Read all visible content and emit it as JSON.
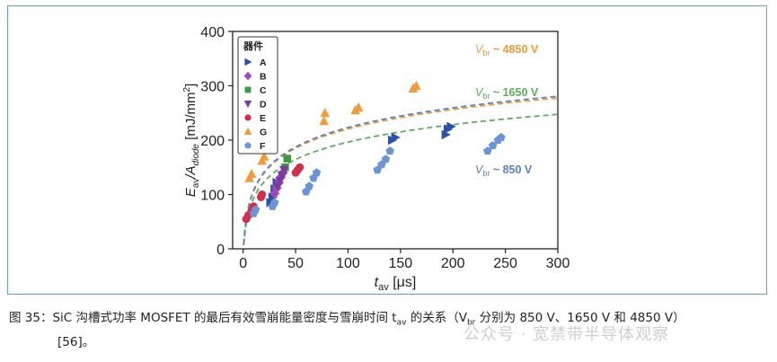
{
  "figure": {
    "caption": "图 35：SiC 沟槽式功率 MOSFET 的最后有效雪崩能量密度与雪崩时间 t",
    "caption_sub": "av",
    "caption_tail": " 的关系（V",
    "caption_sub2": "br",
    "caption_end": " 分别为 850 V、1650 V 和 4850 V）",
    "reference": "[56]。",
    "watermark": "公众号 · 宽禁带半导体观察"
  },
  "chart_data": {
    "type": "scatter",
    "xlabel": "t",
    "xlabel_sub": "av",
    "xlabel_unit": " [μs]",
    "ylabel": "E",
    "ylabel_sub": "av",
    "ylabel_mid": "/A",
    "ylabel_sub2": "diode",
    "ylabel_unit": " [mJ/mm",
    "ylabel_sup": "2",
    "ylabel_close": "]",
    "xlim": [
      -10,
      300
    ],
    "ylim": [
      0,
      400
    ],
    "xticks": [
      0,
      50,
      100,
      150,
      200,
      250,
      300
    ],
    "yticks": [
      0,
      100,
      200,
      300,
      400
    ],
    "grid": false,
    "legend": {
      "title": "器件",
      "placement": "top-left",
      "entries": [
        {
          "name": "A",
          "color": "#2c4fa8",
          "marker": "triangle-right"
        },
        {
          "name": "B",
          "color": "#a347c0",
          "marker": "diamond"
        },
        {
          "name": "C",
          "color": "#3c9a3c",
          "marker": "square"
        },
        {
          "name": "D",
          "color": "#7b3aa0",
          "marker": "triangle-down"
        },
        {
          "name": "E",
          "color": "#d0304a",
          "marker": "circle"
        },
        {
          "name": "G",
          "color": "#f39a3a",
          "marker": "triangle-up"
        },
        {
          "name": "F",
          "color": "#6b93d6",
          "marker": "pentagon"
        }
      ]
    },
    "series": [
      {
        "name": "A",
        "color": "#2c4fa8",
        "marker": "triangle-right",
        "x": [
          26,
          28,
          30,
          32,
          142,
          145,
          193,
          195,
          198
        ],
        "y": [
          85,
          95,
          110,
          122,
          200,
          205,
          210,
          220,
          225
        ]
      },
      {
        "name": "B",
        "color": "#a347c0",
        "marker": "diamond",
        "x": [
          30,
          32,
          34,
          36,
          38
        ],
        "y": [
          102,
          112,
          122,
          132,
          140
        ]
      },
      {
        "name": "C",
        "color": "#3c9a3c",
        "marker": "square",
        "x": [
          40,
          42
        ],
        "y": [
          150,
          166
        ]
      },
      {
        "name": "D",
        "color": "#7b3aa0",
        "marker": "triangle-down",
        "x": [
          33,
          35,
          37,
          39
        ],
        "y": [
          115,
          125,
          135,
          145
        ]
      },
      {
        "name": "E",
        "color": "#d0304a",
        "marker": "circle",
        "x": [
          3,
          5,
          8,
          10,
          17,
          18,
          50,
          52,
          54
        ],
        "y": [
          55,
          62,
          70,
          78,
          95,
          100,
          140,
          145,
          150
        ]
      },
      {
        "name": "G",
        "color": "#f39a3a",
        "marker": "triangle-up",
        "x": [
          6,
          8,
          18,
          20,
          77,
          78,
          107,
          110,
          162,
          165
        ],
        "y": [
          130,
          138,
          162,
          170,
          235,
          250,
          255,
          260,
          295,
          300
        ]
      },
      {
        "name": "F",
        "color": "#6b93d6",
        "marker": "pentagon",
        "x": [
          10,
          12,
          28,
          30,
          60,
          63,
          67,
          70,
          128,
          132,
          136,
          140,
          233,
          238,
          243,
          246
        ],
        "y": [
          65,
          72,
          78,
          85,
          105,
          115,
          130,
          140,
          145,
          155,
          165,
          180,
          180,
          190,
          200,
          205
        ]
      }
    ],
    "fits": [
      {
        "label_prefix": "V",
        "label_sub": "br",
        "label_value": " ~ 4850 V",
        "color": "#f39a3a",
        "a": 0.18,
        "b": 0.132,
        "c": 39.0,
        "d": 1.25
      },
      {
        "label_prefix": "V",
        "label_sub": "br",
        "label_value": " ~ 1650 V",
        "color": "#5aae5a",
        "a": 0.06,
        "b": 0.105,
        "c": 40.0,
        "d": 1.25
      },
      {
        "label_prefix": "V",
        "label_sub": "br",
        "label_value": " ~ 850 V",
        "color": "#5a82c4",
        "a": 0.015,
        "b": 0.104,
        "c": 47.0,
        "d": 1.23
      }
    ]
  }
}
